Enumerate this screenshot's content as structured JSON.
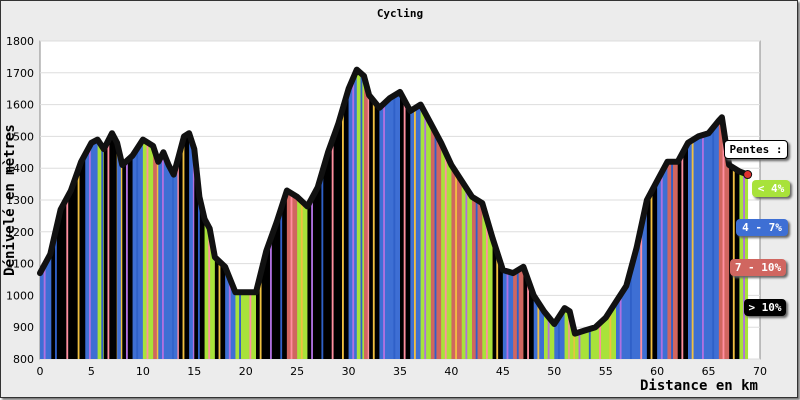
{
  "chart_data": {
    "type": "area",
    "title": "Cycling",
    "xlabel": "Distance en km",
    "ylabel": "Dénivelé en mètres",
    "xlim": [
      0,
      70
    ],
    "ylim": [
      800,
      1800
    ],
    "x_ticks": [
      "0",
      "5",
      "10",
      "15",
      "20",
      "25",
      "30",
      "35",
      "40",
      "45",
      "50",
      "55",
      "60",
      "65",
      "70"
    ],
    "y_ticks": [
      "800",
      "900",
      "1000",
      "1100",
      "1200",
      "1300",
      "1400",
      "1500",
      "1600",
      "1700",
      "1800"
    ],
    "grid": true,
    "legend": {
      "title": "Pentes :",
      "placement": "right",
      "items": [
        {
          "label": "< 4%",
          "color": "#a8e23a"
        },
        {
          "label": "4 - 7%",
          "color": "#3e6fd4"
        },
        {
          "label": "7 - 10%",
          "color": "#d06660"
        },
        {
          "label": "> 10%",
          "color": "#000000"
        }
      ]
    },
    "profile": {
      "x": [
        0,
        1,
        2,
        3,
        4,
        5,
        5.6,
        6.2,
        7,
        7.5,
        8,
        9,
        10,
        11,
        11.5,
        12,
        12.5,
        13,
        13.5,
        14,
        14.5,
        15,
        15.5,
        16,
        16.5,
        17,
        18,
        19,
        20,
        21,
        22,
        23,
        24,
        25,
        26,
        27,
        28,
        29,
        30,
        30.8,
        31.5,
        32,
        33,
        34,
        35,
        36,
        37,
        38,
        39,
        40,
        41,
        42,
        43,
        44,
        45,
        46,
        47,
        48,
        49,
        50,
        51,
        51.5,
        52,
        53,
        54,
        55,
        56,
        57,
        58,
        59,
        60,
        61,
        62,
        63,
        64,
        65,
        66,
        66.3,
        67,
        68,
        68.8
      ],
      "y": [
        1070,
        1130,
        1270,
        1330,
        1420,
        1480,
        1490,
        1460,
        1510,
        1480,
        1410,
        1440,
        1490,
        1470,
        1420,
        1450,
        1410,
        1380,
        1440,
        1500,
        1510,
        1460,
        1310,
        1240,
        1210,
        1120,
        1090,
        1010,
        1010,
        1010,
        1140,
        1230,
        1330,
        1310,
        1280,
        1340,
        1450,
        1540,
        1650,
        1710,
        1690,
        1630,
        1590,
        1620,
        1640,
        1580,
        1600,
        1540,
        1480,
        1410,
        1360,
        1310,
        1290,
        1180,
        1080,
        1070,
        1090,
        1000,
        950,
        910,
        960,
        950,
        880,
        890,
        900,
        930,
        980,
        1030,
        1150,
        1300,
        1360,
        1420,
        1420,
        1480,
        1500,
        1510,
        1550,
        1560,
        1410,
        1390,
        1380
      ]
    },
    "slope_bins": [
      {
        "x": 0,
        "c": 1
      },
      {
        "x": 1.1,
        "c": 3
      },
      {
        "x": 2.2,
        "c": 3
      },
      {
        "x": 3.3,
        "c": 3
      },
      {
        "x": 4.4,
        "c": 1
      },
      {
        "x": 5.6,
        "c": 0
      },
      {
        "x": 6.2,
        "c": 3
      },
      {
        "x": 7.5,
        "c": 1
      },
      {
        "x": 8,
        "c": 3
      },
      {
        "x": 9,
        "c": 1
      },
      {
        "x": 10,
        "c": 0
      },
      {
        "x": 11,
        "c": 2
      },
      {
        "x": 11.5,
        "c": 1
      },
      {
        "x": 12.5,
        "c": 1
      },
      {
        "x": 13,
        "c": 1
      },
      {
        "x": 13.5,
        "c": 3
      },
      {
        "x": 14.5,
        "c": 1
      },
      {
        "x": 15,
        "c": 3
      },
      {
        "x": 16,
        "c": 0
      },
      {
        "x": 17,
        "c": 3
      },
      {
        "x": 18,
        "c": 1
      },
      {
        "x": 19,
        "c": 0
      },
      {
        "x": 20,
        "c": 0
      },
      {
        "x": 21,
        "c": 3
      },
      {
        "x": 22,
        "c": 3
      },
      {
        "x": 23,
        "c": 3
      },
      {
        "x": 24,
        "c": 2
      },
      {
        "x": 25,
        "c": 0
      },
      {
        "x": 26,
        "c": 3
      },
      {
        "x": 27,
        "c": 3
      },
      {
        "x": 28,
        "c": 3
      },
      {
        "x": 29,
        "c": 3
      },
      {
        "x": 30,
        "c": 1
      },
      {
        "x": 30.8,
        "c": 0
      },
      {
        "x": 31.5,
        "c": 2
      },
      {
        "x": 32,
        "c": 3
      },
      {
        "x": 33,
        "c": 1
      },
      {
        "x": 34,
        "c": 1
      },
      {
        "x": 35,
        "c": 3
      },
      {
        "x": 36,
        "c": 1
      },
      {
        "x": 37,
        "c": 0
      },
      {
        "x": 38,
        "c": 2
      },
      {
        "x": 39,
        "c": 0
      },
      {
        "x": 40,
        "c": 2
      },
      {
        "x": 41,
        "c": 0
      },
      {
        "x": 42,
        "c": 2
      },
      {
        "x": 43,
        "c": 0
      },
      {
        "x": 44,
        "c": 3
      },
      {
        "x": 45,
        "c": 1
      },
      {
        "x": 46,
        "c": 2
      },
      {
        "x": 47,
        "c": 3
      },
      {
        "x": 48,
        "c": 1
      },
      {
        "x": 49,
        "c": 0
      },
      {
        "x": 50,
        "c": 1
      },
      {
        "x": 51,
        "c": 0
      },
      {
        "x": 51.5,
        "c": 0
      },
      {
        "x": 52,
        "c": 0
      },
      {
        "x": 53,
        "c": 0
      },
      {
        "x": 54,
        "c": 0
      },
      {
        "x": 55,
        "c": 0
      },
      {
        "x": 56,
        "c": 1
      },
      {
        "x": 57,
        "c": 1
      },
      {
        "x": 58,
        "c": 1
      },
      {
        "x": 59,
        "c": 3
      },
      {
        "x": 60,
        "c": 1
      },
      {
        "x": 61,
        "c": 2
      },
      {
        "x": 62,
        "c": 3
      },
      {
        "x": 63,
        "c": 1
      },
      {
        "x": 64,
        "c": 1
      },
      {
        "x": 65,
        "c": 1
      },
      {
        "x": 66,
        "c": 2
      },
      {
        "x": 67,
        "c": 3
      },
      {
        "x": 68,
        "c": 0
      }
    ]
  }
}
